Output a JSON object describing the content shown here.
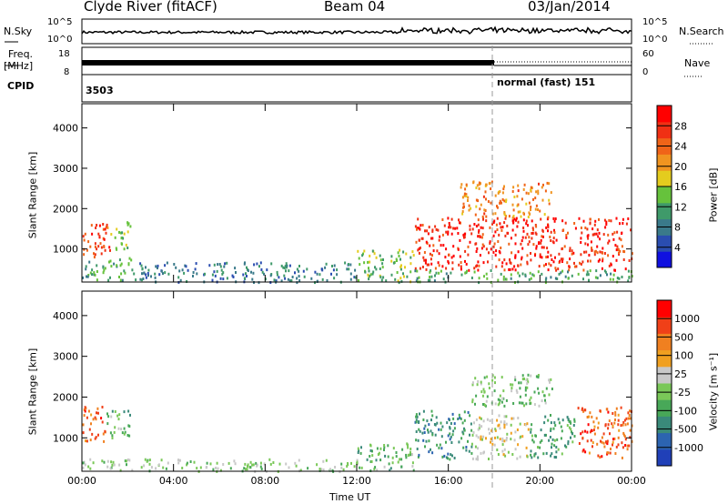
{
  "header": {
    "station": "Clyde River (fitACF)",
    "beam": "Beam 04",
    "date": "03/Jan/2014"
  },
  "strips": {
    "nsky_label": "N.Sky",
    "nsky_ticks": [
      "10^5",
      "10^0"
    ],
    "nsearch_label": "N.Search",
    "nsearch_ticks": [
      "10^5",
      "10^0"
    ],
    "freq_label": "Freq.",
    "freq_unit": "[MHz]",
    "freq_ticks": [
      "18",
      "8"
    ],
    "nave_label": "Nave",
    "nave_ticks": [
      "60",
      "0"
    ],
    "cpid_label": "CPID",
    "cpid_first": "3503",
    "cpid_second": "normal (fast) 151",
    "cpid_switch_hour": 18
  },
  "power_colorbar": {
    "title": "Power [dB]",
    "ticks": [
      "28",
      "24",
      "20",
      "16",
      "12",
      "8",
      "4"
    ],
    "colors": [
      "#1010e0",
      "#2a4db0",
      "#3a7a8a",
      "#3f9a6a",
      "#66c23c",
      "#e4cc1e",
      "#f09420",
      "#f06418",
      "#f03014",
      "#ff0000"
    ]
  },
  "velocity_colorbar": {
    "title": "Velocity [m s⁻¹]",
    "ticks": [
      "1000",
      "500",
      "100",
      "25",
      "-25",
      "-100",
      "-500",
      "-1000"
    ],
    "colors": [
      "#2040b8",
      "#2c64b0",
      "#3a8a7a",
      "#48a858",
      "#7ac858",
      "#c8c8c8",
      "#f0a020",
      "#f08020",
      "#f04018",
      "#ff0000"
    ]
  },
  "chart_data": [
    {
      "type": "heatmap",
      "title": "Power",
      "xlabel": "",
      "ylabel": "Slant Range [km]",
      "x_ticks": [
        "00:00",
        "04:00",
        "08:00",
        "12:00",
        "16:00",
        "20:00",
        "00:00"
      ],
      "xlim_hours": [
        0,
        24
      ],
      "y_ticks": [
        "1000",
        "2000",
        "3000",
        "4000"
      ],
      "ylim_km": [
        180,
        4600
      ],
      "colorbar_label": "Power [dB]",
      "colorbar_range": [
        0,
        32
      ],
      "echo_regions": [
        {
          "t_start": 0.0,
          "t_end": 1.2,
          "r_min": 800,
          "r_max": 1750,
          "value": 26
        },
        {
          "t_start": 1.2,
          "t_end": 2.1,
          "r_min": 1000,
          "r_max": 1700,
          "value": 14
        },
        {
          "t_start": 0.0,
          "t_end": 2.2,
          "r_min": 250,
          "r_max": 800,
          "value": 12
        },
        {
          "t_start": 2.2,
          "t_end": 12.0,
          "r_min": 200,
          "r_max": 700,
          "value": 8
        },
        {
          "t_start": 12.0,
          "t_end": 14.5,
          "r_min": 200,
          "r_max": 1000,
          "value": 14
        },
        {
          "t_start": 14.5,
          "t_end": 24.0,
          "r_min": 500,
          "r_max": 1800,
          "value": 28
        },
        {
          "t_start": 16.5,
          "t_end": 20.5,
          "r_min": 1800,
          "r_max": 2700,
          "value": 22
        },
        {
          "t_start": 14.5,
          "t_end": 24.0,
          "r_min": 200,
          "r_max": 500,
          "value": 12
        }
      ]
    },
    {
      "type": "heatmap",
      "title": "Velocity",
      "xlabel": "Time UT",
      "ylabel": "Slant Range [km]",
      "x_ticks": [
        "00:00",
        "04:00",
        "08:00",
        "12:00",
        "16:00",
        "20:00",
        "00:00"
      ],
      "xlim_hours": [
        0,
        24
      ],
      "y_ticks": [
        "1000",
        "2000",
        "3000",
        "4000"
      ],
      "ylim_km": [
        180,
        4600
      ],
      "colorbar_label": "Velocity [m s⁻¹]",
      "colorbar_range": [
        -1000,
        1000
      ],
      "echo_regions": [
        {
          "t_start": 0.0,
          "t_end": 1.0,
          "r_min": 900,
          "r_max": 1800,
          "value": 600
        },
        {
          "t_start": 1.0,
          "t_end": 2.1,
          "r_min": 1000,
          "r_max": 1700,
          "value": -200
        },
        {
          "t_start": 0.0,
          "t_end": 12.0,
          "r_min": 200,
          "r_max": 500,
          "value": -60
        },
        {
          "t_start": 12.0,
          "t_end": 14.5,
          "r_min": 200,
          "r_max": 900,
          "value": -200
        },
        {
          "t_start": 14.5,
          "t_end": 17.0,
          "r_min": 500,
          "r_max": 1700,
          "value": -450
        },
        {
          "t_start": 17.0,
          "t_end": 19.5,
          "r_min": 500,
          "r_max": 1600,
          "value": 120
        },
        {
          "t_start": 19.5,
          "t_end": 21.5,
          "r_min": 500,
          "r_max": 1600,
          "value": -350
        },
        {
          "t_start": 21.5,
          "t_end": 24.0,
          "r_min": 500,
          "r_max": 1800,
          "value": 600
        },
        {
          "t_start": 17.0,
          "t_end": 20.5,
          "r_min": 1800,
          "r_max": 2600,
          "value": -120
        }
      ]
    }
  ]
}
